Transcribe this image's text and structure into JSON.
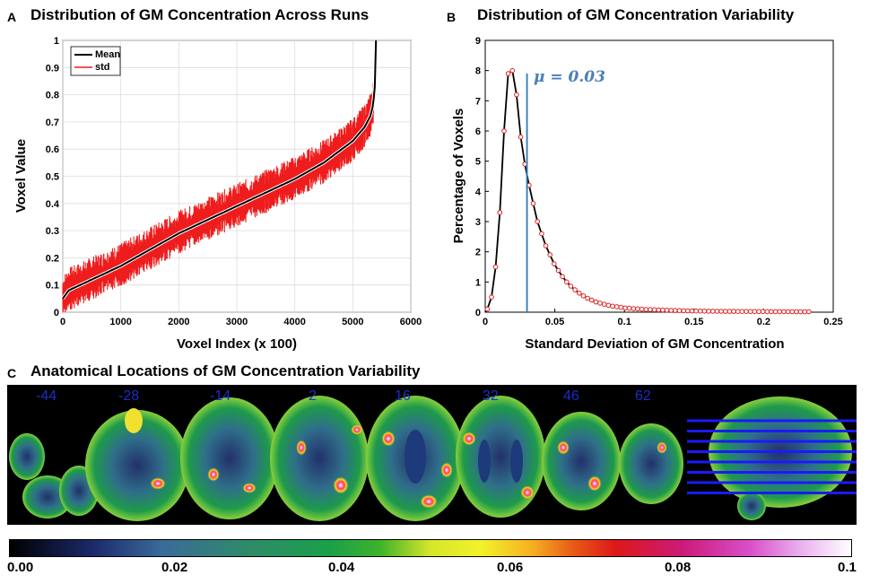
{
  "panelA": {
    "letter": "A",
    "title": "Distribution of GM Concentration Across Runs",
    "xlabel": "Voxel Index (x 100)",
    "ylabel": "Voxel Value",
    "legend": [
      "Mean",
      "std"
    ]
  },
  "panelB": {
    "letter": "B",
    "title": "Distribution of GM Concentration Variability",
    "xlabel": "Standard Deviation of GM Concentration",
    "ylabel": "Percentage of Voxels",
    "annotation": "μ = 0.03"
  },
  "panelC": {
    "letter": "C",
    "title": "Anatomical Locations of GM Concentration Variability",
    "slices": [
      "-44",
      "-28",
      "-14",
      "2",
      "16",
      "32",
      "46",
      "62"
    ],
    "colorbar_ticks": [
      "0.00",
      "0.02",
      "0.04",
      "0.06",
      "0.08",
      "0.1"
    ]
  },
  "chart_data": [
    {
      "type": "line",
      "title": "Distribution of GM Concentration Across Runs",
      "xlabel": "Voxel Index (x 100)",
      "ylabel": "Voxel Value",
      "xlim": [
        0,
        6000
      ],
      "ylim": [
        0,
        1
      ],
      "xticks": [
        "0",
        "1000",
        "2000",
        "3000",
        "4000",
        "5000",
        "6000"
      ],
      "yticks": [
        "0",
        "0.1",
        "0.2",
        "0.3",
        "0.4",
        "0.5",
        "0.6",
        "0.7",
        "0.8",
        "0.9",
        "1"
      ],
      "grid": true,
      "legend_position": "top-left",
      "series": [
        {
          "name": "Mean",
          "color": "#000000",
          "x": [
            0,
            100,
            300,
            600,
            1000,
            1500,
            2000,
            2500,
            3000,
            3500,
            4000,
            4500,
            5000,
            5200,
            5300,
            5350,
            5380,
            5400
          ],
          "y": [
            0.05,
            0.08,
            0.1,
            0.13,
            0.17,
            0.23,
            0.29,
            0.34,
            0.39,
            0.44,
            0.49,
            0.55,
            0.63,
            0.68,
            0.72,
            0.76,
            0.83,
            1.0
          ]
        },
        {
          "name": "std",
          "color": "#ee1c1c",
          "spread": 0.06
        }
      ]
    },
    {
      "type": "line",
      "title": "Distribution of GM Concentration Variability",
      "xlabel": "Standard Deviation of GM Concentration",
      "ylabel": "Percentage of Voxels",
      "xlim": [
        0,
        0.25
      ],
      "ylim": [
        0,
        9
      ],
      "xticks": [
        "0",
        "0.05",
        "0.1",
        "0.15",
        "0.2",
        "0.25"
      ],
      "yticks": [
        "0",
        "1",
        "2",
        "3",
        "4",
        "5",
        "6",
        "7",
        "8",
        "9"
      ],
      "grid": false,
      "vline": {
        "x": 0.03,
        "label": "μ = 0.03",
        "color": "#2b7bb9"
      },
      "series": [
        {
          "name": "distribution",
          "color": "#000000",
          "marker_color": "#dd2222",
          "x": [
            0.0015,
            0.0045,
            0.0075,
            0.0105,
            0.0135,
            0.0165,
            0.0195,
            0.0225,
            0.0255,
            0.0285,
            0.0315,
            0.0345,
            0.0375,
            0.0405,
            0.0435,
            0.0465,
            0.0495,
            0.0525,
            0.0555,
            0.0585,
            0.0615,
            0.0645,
            0.0675,
            0.0705,
            0.0735,
            0.0765,
            0.0795,
            0.0825,
            0.0855,
            0.0885,
            0.0915,
            0.0945,
            0.0975,
            0.1005,
            0.1035,
            0.1065,
            0.1095,
            0.1125,
            0.1155,
            0.1185,
            0.1215,
            0.1245,
            0.1275,
            0.1305,
            0.1335,
            0.1365,
            0.1395,
            0.1425,
            0.1455,
            0.1485,
            0.1515,
            0.1545,
            0.1575,
            0.1605,
            0.1635,
            0.1665,
            0.1695,
            0.1725,
            0.1755,
            0.1785,
            0.1815,
            0.1845,
            0.1875,
            0.1905,
            0.1935,
            0.1965,
            0.1995,
            0.2025,
            0.2055,
            0.2085,
            0.2115,
            0.2145,
            0.2175,
            0.2205,
            0.2235,
            0.2265,
            0.2295,
            0.2325
          ],
          "y": [
            0.1,
            0.5,
            1.5,
            3.3,
            6.0,
            7.9,
            8.0,
            7.2,
            5.8,
            4.9,
            4.2,
            3.6,
            3.0,
            2.6,
            2.2,
            1.9,
            1.6,
            1.38,
            1.18,
            1.0,
            0.86,
            0.74,
            0.63,
            0.54,
            0.46,
            0.4,
            0.34,
            0.3,
            0.26,
            0.23,
            0.2,
            0.18,
            0.16,
            0.14,
            0.13,
            0.12,
            0.11,
            0.1,
            0.09,
            0.085,
            0.08,
            0.075,
            0.07,
            0.065,
            0.06,
            0.056,
            0.052,
            0.048,
            0.045,
            0.042,
            0.04,
            0.038,
            0.036,
            0.034,
            0.032,
            0.03,
            0.029,
            0.028,
            0.027,
            0.026,
            0.025,
            0.024,
            0.023,
            0.022,
            0.021,
            0.02,
            0.02,
            0.019,
            0.019,
            0.018,
            0.018,
            0.017,
            0.017,
            0.016,
            0.016,
            0.015,
            0.015,
            0.015
          ]
        }
      ]
    }
  ],
  "colors": {
    "std_red": "#ee1c1c",
    "mean_black": "#000000",
    "marker_red": "#dd2222",
    "vline_blue": "#2b7bb9",
    "slice_label_blue": "#1f2cc8",
    "sagittal_lines": "#1a1aff"
  }
}
